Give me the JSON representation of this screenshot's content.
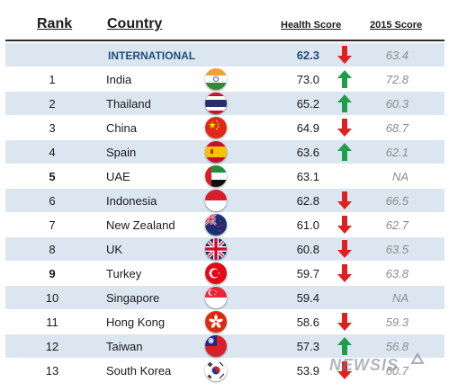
{
  "headers": {
    "rank": "Rank",
    "country": "Country",
    "health_score": "Health Score",
    "score_2015": "2015 Score"
  },
  "international": {
    "label": "INTERNATIONAL",
    "score": "62.3",
    "score_2015": "63.4",
    "trend": "down"
  },
  "rows": [
    {
      "rank": "1",
      "rank_bold": false,
      "country": "India",
      "flag_icon": "india-flag-icon",
      "score": "73.0",
      "trend": "up",
      "score_2015": "72.8",
      "shade": false
    },
    {
      "rank": "2",
      "rank_bold": false,
      "country": "Thailand",
      "flag_icon": "thailand-flag-icon",
      "score": "65.2",
      "trend": "up",
      "score_2015": "60.3",
      "shade": true
    },
    {
      "rank": "3",
      "rank_bold": false,
      "country": "China",
      "flag_icon": "china-flag-icon",
      "score": "64.9",
      "trend": "down",
      "score_2015": "68.7",
      "shade": false
    },
    {
      "rank": "4",
      "rank_bold": false,
      "country": "Spain",
      "flag_icon": "spain-flag-icon",
      "score": "63.6",
      "trend": "up",
      "score_2015": "62.1",
      "shade": true
    },
    {
      "rank": "5",
      "rank_bold": true,
      "country": "UAE",
      "flag_icon": "uae-flag-icon",
      "score": "63.1",
      "trend": "none",
      "score_2015": "NA",
      "shade": false
    },
    {
      "rank": "6",
      "rank_bold": false,
      "country": "Indonesia",
      "flag_icon": "indonesia-flag-icon",
      "score": "62.8",
      "trend": "down",
      "score_2015": "66.5",
      "shade": true
    },
    {
      "rank": "7",
      "rank_bold": false,
      "country": "New Zealand",
      "flag_icon": "new-zealand-flag-icon",
      "score": "61.0",
      "trend": "down",
      "score_2015": "62.7",
      "shade": false
    },
    {
      "rank": "8",
      "rank_bold": false,
      "country": "UK",
      "flag_icon": "uk-flag-icon",
      "score": "60.8",
      "trend": "down",
      "score_2015": "63.5",
      "shade": true
    },
    {
      "rank": "9",
      "rank_bold": true,
      "country": "Turkey",
      "flag_icon": "turkey-flag-icon",
      "score": "59.7",
      "trend": "down",
      "score_2015": "63.8",
      "shade": false
    },
    {
      "rank": "10",
      "rank_bold": false,
      "country": "Singapore",
      "flag_icon": "singapore-flag-icon",
      "score": "59.4",
      "trend": "none",
      "score_2015": "NA",
      "shade": true
    },
    {
      "rank": "11",
      "rank_bold": false,
      "country": "Hong Kong",
      "flag_icon": "hong-kong-flag-icon",
      "score": "58.6",
      "trend": "down",
      "score_2015": "59.3",
      "shade": false
    },
    {
      "rank": "12",
      "rank_bold": false,
      "country": "Taiwan",
      "flag_icon": "taiwan-flag-icon",
      "score": "57.3",
      "trend": "up",
      "score_2015": "56.8",
      "shade": true
    },
    {
      "rank": "13",
      "rank_bold": false,
      "country": "South Korea",
      "flag_icon": "south-korea-flag-icon",
      "score": "53.9",
      "trend": "down",
      "score_2015": "60.7",
      "shade": false
    }
  ],
  "colors": {
    "row_shade": "#dce6f1",
    "up_arrow": "#1e9e4a",
    "down_arrow": "#e02020",
    "intl_text": "#1f4e79"
  },
  "watermark": {
    "text": "NEWSIS",
    "icon": "newsis-logo-icon"
  }
}
